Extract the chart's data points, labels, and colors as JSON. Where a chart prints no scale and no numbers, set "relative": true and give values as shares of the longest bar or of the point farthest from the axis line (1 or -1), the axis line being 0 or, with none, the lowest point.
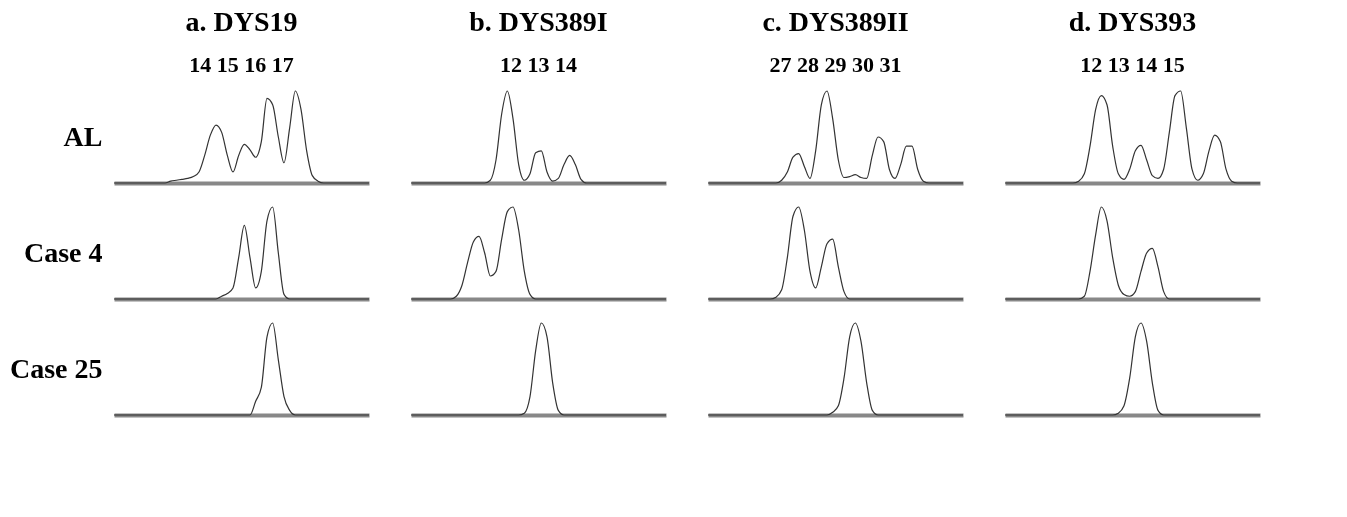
{
  "chart_data": [
    {
      "type": "line",
      "title": "a.  DYS19",
      "subtitle": "14 15 16 17",
      "ylabel": "AL",
      "relative": true,
      "color": "#333333",
      "categories": [
        null,
        null,
        null,
        null,
        null,
        null,
        null,
        null,
        null,
        null,
        null,
        null,
        null,
        null,
        null,
        null,
        null,
        null,
        null,
        null,
        null,
        null,
        null,
        null,
        null,
        null,
        null,
        null,
        null,
        null,
        null,
        null,
        null,
        null,
        null,
        null,
        null,
        null,
        null,
        null,
        null,
        null,
        null,
        null,
        null,
        null
      ],
      "values": [
        0,
        0,
        0,
        0,
        0,
        0,
        0,
        0,
        0,
        0,
        0.02,
        0.03,
        0.04,
        0.05,
        0.07,
        0.12,
        0.3,
        0.52,
        0.63,
        0.55,
        0.3,
        0.12,
        0.3,
        0.42,
        0.36,
        0.28,
        0.45,
        0.92,
        0.85,
        0.5,
        0.22,
        0.6,
        1,
        0.8,
        0.35,
        0.08,
        0.02,
        0,
        0,
        0,
        0,
        0,
        0,
        0,
        0,
        0
      ]
    },
    {
      "type": "line",
      "title": "b.  DYS389I",
      "subtitle": "12 13 14",
      "relative": true,
      "color": "#333333",
      "categories": [
        null,
        null,
        null,
        null,
        null,
        null,
        null,
        null,
        null,
        null,
        null,
        null,
        null,
        null,
        null,
        null,
        null,
        null,
        null,
        null,
        null,
        null,
        null,
        null,
        null,
        null,
        null,
        null,
        null,
        null,
        null,
        null,
        null,
        null,
        null,
        null,
        null,
        null,
        null,
        null,
        null,
        null,
        null,
        null,
        null,
        null
      ],
      "values": [
        0,
        0,
        0,
        0,
        0,
        0,
        0,
        0,
        0,
        0,
        0,
        0,
        0,
        0,
        0.03,
        0.25,
        0.75,
        1,
        0.7,
        0.2,
        0.03,
        0.1,
        0.33,
        0.35,
        0.12,
        0.02,
        0.05,
        0.2,
        0.3,
        0.2,
        0.04,
        0,
        0,
        0,
        0,
        0,
        0,
        0,
        0,
        0,
        0,
        0,
        0,
        0,
        0,
        0
      ]
    },
    {
      "type": "line",
      "title": "c.  DYS389II",
      "subtitle": "27 28 29 30 31",
      "relative": true,
      "color": "#333333",
      "categories": [
        null,
        null,
        null,
        null,
        null,
        null,
        null,
        null,
        null,
        null,
        null,
        null,
        null,
        null,
        null,
        null,
        null,
        null,
        null,
        null,
        null,
        null,
        null,
        null,
        null,
        null,
        null,
        null,
        null,
        null,
        null,
        null,
        null,
        null,
        null,
        null,
        null,
        null,
        null,
        null,
        null,
        null,
        null,
        null,
        null,
        null
      ],
      "values": [
        0,
        0,
        0,
        0,
        0,
        0,
        0,
        0,
        0,
        0,
        0,
        0,
        0,
        0.03,
        0.12,
        0.28,
        0.32,
        0.18,
        0.05,
        0.35,
        0.85,
        1,
        0.7,
        0.25,
        0.06,
        0.07,
        0.09,
        0.06,
        0.05,
        0.3,
        0.5,
        0.45,
        0.15,
        0.05,
        0.2,
        0.4,
        0.4,
        0.15,
        0.02,
        0,
        0,
        0,
        0,
        0,
        0,
        0
      ]
    },
    {
      "type": "line",
      "title": "d.  DYS393",
      "subtitle": "12 13 14 15",
      "relative": true,
      "color": "#333333",
      "categories": [
        null,
        null,
        null,
        null,
        null,
        null,
        null,
        null,
        null,
        null,
        null,
        null,
        null,
        null,
        null,
        null,
        null,
        null,
        null,
        null,
        null,
        null,
        null,
        null,
        null,
        null,
        null,
        null,
        null,
        null,
        null,
        null,
        null,
        null,
        null,
        null,
        null,
        null,
        null,
        null,
        null,
        null,
        null,
        null,
        null,
        null
      ],
      "values": [
        0,
        0,
        0,
        0,
        0,
        0,
        0,
        0,
        0,
        0,
        0,
        0,
        0,
        0.02,
        0.1,
        0.4,
        0.8,
        0.95,
        0.85,
        0.4,
        0.1,
        0.04,
        0.15,
        0.35,
        0.41,
        0.25,
        0.08,
        0.05,
        0.15,
        0.55,
        0.95,
        1,
        0.6,
        0.15,
        0.03,
        0.1,
        0.35,
        0.52,
        0.45,
        0.15,
        0.02,
        0,
        0,
        0,
        0,
        0
      ]
    },
    {
      "type": "line",
      "ylabel": "Case 4",
      "relative": true,
      "color": "#333333",
      "categories": [
        null,
        null,
        null,
        null,
        null,
        null,
        null,
        null,
        null,
        null,
        null,
        null,
        null,
        null,
        null,
        null,
        null,
        null,
        null,
        null,
        null,
        null,
        null,
        null,
        null,
        null,
        null,
        null,
        null,
        null,
        null,
        null,
        null,
        null,
        null,
        null,
        null,
        null,
        null,
        null,
        null,
        null,
        null,
        null,
        null,
        null
      ],
      "values": [
        0,
        0,
        0,
        0,
        0,
        0,
        0,
        0,
        0,
        0,
        0,
        0,
        0,
        0,
        0,
        0,
        0,
        0,
        0,
        0.03,
        0.06,
        0.12,
        0.45,
        0.8,
        0.45,
        0.12,
        0.3,
        0.85,
        1,
        0.5,
        0.05,
        0,
        0,
        0,
        0,
        0,
        0,
        0,
        0,
        0,
        0,
        0,
        0,
        0,
        0,
        0
      ]
    },
    {
      "type": "line",
      "relative": true,
      "color": "#333333",
      "categories": [
        null,
        null,
        null,
        null,
        null,
        null,
        null,
        null,
        null,
        null,
        null,
        null,
        null,
        null,
        null,
        null,
        null,
        null,
        null,
        null,
        null,
        null,
        null,
        null,
        null,
        null,
        null,
        null,
        null,
        null,
        null,
        null,
        null,
        null,
        null,
        null,
        null,
        null,
        null,
        null,
        null,
        null,
        null,
        null,
        null,
        null
      ],
      "values": [
        0,
        0,
        0,
        0,
        0,
        0,
        0,
        0,
        0.03,
        0.15,
        0.4,
        0.62,
        0.68,
        0.5,
        0.25,
        0.3,
        0.65,
        0.95,
        1,
        0.75,
        0.3,
        0.05,
        0,
        0,
        0,
        0,
        0,
        0,
        0,
        0,
        0,
        0,
        0,
        0,
        0,
        0,
        0,
        0,
        0,
        0,
        0,
        0,
        0,
        0,
        0,
        0
      ]
    },
    {
      "type": "line",
      "relative": true,
      "color": "#333333",
      "categories": [
        null,
        null,
        null,
        null,
        null,
        null,
        null,
        null,
        null,
        null,
        null,
        null,
        null,
        null,
        null,
        null,
        null,
        null,
        null,
        null,
        null,
        null,
        null,
        null,
        null,
        null,
        null,
        null,
        null,
        null,
        null,
        null,
        null,
        null,
        null,
        null,
        null,
        null,
        null,
        null,
        null,
        null,
        null,
        null,
        null,
        null
      ],
      "values": [
        0,
        0,
        0,
        0,
        0,
        0,
        0,
        0,
        0,
        0,
        0,
        0,
        0.02,
        0.1,
        0.45,
        0.9,
        1,
        0.75,
        0.3,
        0.12,
        0.35,
        0.6,
        0.65,
        0.35,
        0.08,
        0,
        0,
        0,
        0,
        0,
        0,
        0,
        0,
        0,
        0,
        0,
        0,
        0,
        0,
        0,
        0,
        0,
        0,
        0,
        0,
        0
      ]
    },
    {
      "type": "line",
      "relative": true,
      "color": "#333333",
      "categories": [
        null,
        null,
        null,
        null,
        null,
        null,
        null,
        null,
        null,
        null,
        null,
        null,
        null,
        null,
        null,
        null,
        null,
        null,
        null,
        null,
        null,
        null,
        null,
        null,
        null,
        null,
        null,
        null,
        null,
        null,
        null,
        null,
        null,
        null,
        null,
        null,
        null,
        null,
        null,
        null,
        null,
        null,
        null,
        null,
        null,
        null
      ],
      "values": [
        0,
        0,
        0,
        0,
        0,
        0,
        0,
        0,
        0,
        0,
        0,
        0,
        0,
        0,
        0.03,
        0.3,
        0.7,
        1,
        0.85,
        0.45,
        0.15,
        0.05,
        0.03,
        0.08,
        0.3,
        0.5,
        0.55,
        0.35,
        0.08,
        0,
        0,
        0,
        0,
        0,
        0,
        0,
        0,
        0,
        0,
        0,
        0,
        0,
        0,
        0,
        0,
        0
      ]
    },
    {
      "type": "line",
      "ylabel": "Case 25",
      "relative": true,
      "color": "#333333",
      "categories": [
        null,
        null,
        null,
        null,
        null,
        null,
        null,
        null,
        null,
        null,
        null,
        null,
        null,
        null,
        null,
        null,
        null,
        null,
        null,
        null,
        null,
        null,
        null,
        null,
        null,
        null,
        null,
        null,
        null,
        null,
        null,
        null,
        null,
        null,
        null,
        null,
        null,
        null,
        null,
        null,
        null,
        null,
        null,
        null,
        null,
        null
      ],
      "values": [
        0,
        0,
        0,
        0,
        0,
        0,
        0,
        0,
        0,
        0,
        0,
        0,
        0,
        0,
        0,
        0,
        0,
        0,
        0,
        0,
        0,
        0,
        0,
        0,
        0,
        0.15,
        0.3,
        0.85,
        1,
        0.6,
        0.2,
        0.05,
        0,
        0,
        0,
        0,
        0,
        0,
        0,
        0,
        0,
        0,
        0,
        0,
        0,
        0
      ]
    },
    {
      "type": "line",
      "relative": true,
      "color": "#333333",
      "categories": [
        null,
        null,
        null,
        null,
        null,
        null,
        null,
        null,
        null,
        null,
        null,
        null,
        null,
        null,
        null,
        null,
        null,
        null,
        null,
        null,
        null,
        null,
        null,
        null,
        null,
        null,
        null,
        null,
        null,
        null,
        null,
        null,
        null,
        null,
        null,
        null,
        null,
        null,
        null,
        null,
        null,
        null,
        null,
        null,
        null,
        null
      ],
      "values": [
        0,
        0,
        0,
        0,
        0,
        0,
        0,
        0,
        0,
        0,
        0,
        0,
        0,
        0,
        0,
        0,
        0,
        0,
        0,
        0,
        0.02,
        0.2,
        0.7,
        1,
        0.85,
        0.35,
        0.05,
        0,
        0,
        0,
        0,
        0,
        0,
        0,
        0,
        0,
        0,
        0,
        0,
        0,
        0,
        0,
        0,
        0,
        0,
        0
      ]
    },
    {
      "type": "line",
      "relative": true,
      "color": "#333333",
      "categories": [
        null,
        null,
        null,
        null,
        null,
        null,
        null,
        null,
        null,
        null,
        null,
        null,
        null,
        null,
        null,
        null,
        null,
        null,
        null,
        null,
        null,
        null,
        null,
        null,
        null,
        null,
        null,
        null,
        null,
        null,
        null,
        null,
        null,
        null,
        null,
        null,
        null,
        null,
        null,
        null,
        null,
        null,
        null,
        null,
        null,
        null
      ],
      "values": [
        0,
        0,
        0,
        0,
        0,
        0,
        0,
        0,
        0,
        0,
        0,
        0,
        0,
        0,
        0,
        0,
        0,
        0,
        0,
        0,
        0,
        0,
        0.03,
        0.1,
        0.4,
        0.85,
        1,
        0.8,
        0.35,
        0.05,
        0,
        0,
        0,
        0,
        0,
        0,
        0,
        0,
        0,
        0,
        0,
        0,
        0,
        0,
        0,
        0
      ]
    },
    {
      "type": "line",
      "relative": true,
      "color": "#333333",
      "categories": [
        null,
        null,
        null,
        null,
        null,
        null,
        null,
        null,
        null,
        null,
        null,
        null,
        null,
        null,
        null,
        null,
        null,
        null,
        null,
        null,
        null,
        null,
        null,
        null,
        null,
        null,
        null,
        null,
        null,
        null,
        null,
        null,
        null,
        null,
        null,
        null,
        null,
        null,
        null,
        null,
        null,
        null,
        null,
        null,
        null,
        null
      ],
      "values": [
        0,
        0,
        0,
        0,
        0,
        0,
        0,
        0,
        0,
        0,
        0,
        0,
        0,
        0,
        0,
        0,
        0,
        0,
        0,
        0,
        0.02,
        0.1,
        0.4,
        0.85,
        1,
        0.8,
        0.35,
        0.05,
        0,
        0,
        0,
        0,
        0,
        0,
        0,
        0,
        0,
        0,
        0,
        0,
        0,
        0,
        0,
        0,
        0,
        0
      ]
    }
  ]
}
